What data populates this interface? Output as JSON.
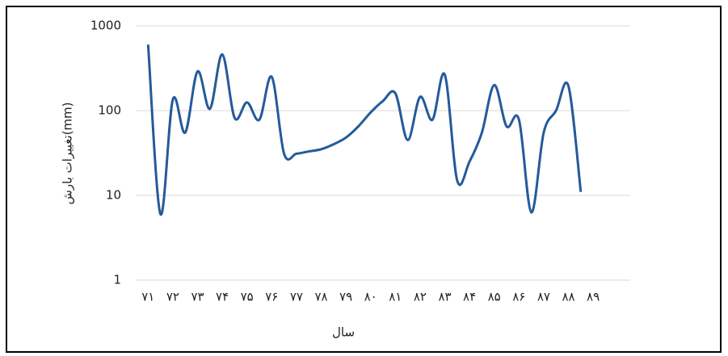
{
  "chart_data": {
    "type": "line",
    "y_label": "تغییرات بارش(mm)",
    "x_label": "سال",
    "log_scale": true,
    "grid": true,
    "xlim": [
      70.5,
      90.5
    ],
    "xticks": [
      {
        "value": 71,
        "label": "۷۱"
      },
      {
        "value": 72,
        "label": "۷۲"
      },
      {
        "value": 73,
        "label": "۷۳"
      },
      {
        "value": 74,
        "label": "۷۴"
      },
      {
        "value": 75,
        "label": "۷۵"
      },
      {
        "value": 76,
        "label": "۷۶"
      },
      {
        "value": 77,
        "label": "۷۷"
      },
      {
        "value": 78,
        "label": "۷۸"
      },
      {
        "value": 79,
        "label": "۷۹"
      },
      {
        "value": 80,
        "label": "۸۰"
      },
      {
        "value": 81,
        "label": "۸۱"
      },
      {
        "value": 82,
        "label": "۸۲"
      },
      {
        "value": 83,
        "label": "۸۳"
      },
      {
        "value": 84,
        "label": "۸۴"
      },
      {
        "value": 85,
        "label": "۸۵"
      },
      {
        "value": 86,
        "label": "۸۶"
      },
      {
        "value": 87,
        "label": "۸۷"
      },
      {
        "value": 88,
        "label": "۸۸"
      },
      {
        "value": 89,
        "label": "۸۹"
      }
    ],
    "ylim": [
      1,
      1000
    ],
    "yticks": [
      1,
      10,
      100,
      1000
    ],
    "x": [
      71,
      71.5,
      72,
      72.5,
      73,
      73.5,
      74,
      74.5,
      75,
      75.5,
      76,
      76.5,
      77,
      77.5,
      78,
      78.5,
      79,
      79.5,
      80,
      80.5,
      81,
      81.5,
      82,
      82.5,
      83,
      83.5,
      84,
      84.5,
      85,
      85.5,
      86,
      86.5,
      87,
      87.5,
      88,
      88.5
    ],
    "series": [
      {
        "color": "#245a9b",
        "values": [
          600,
          6,
          135,
          55,
          290,
          105,
          460,
          82,
          125,
          78,
          250,
          31,
          31,
          33,
          35,
          40,
          48,
          65,
          95,
          130,
          160,
          45,
          145,
          78,
          265,
          15,
          25,
          55,
          200,
          65,
          78,
          6.3,
          55,
          100,
          195,
          11
        ]
      }
    ]
  }
}
